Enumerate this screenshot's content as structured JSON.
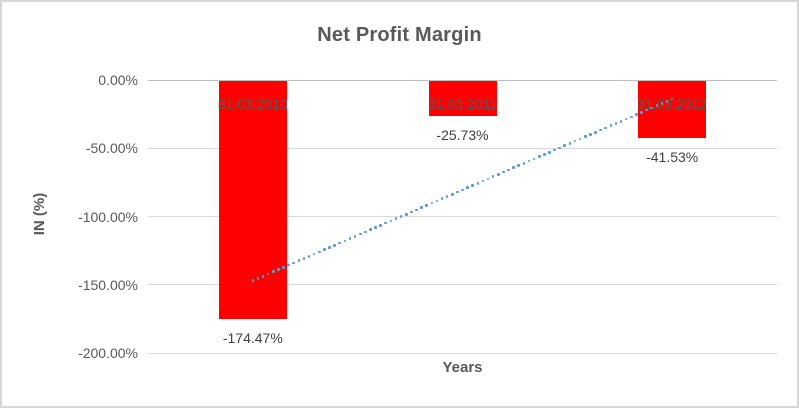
{
  "chart_data": {
    "type": "bar",
    "title": "Net Profit Margin",
    "xlabel": "Years",
    "ylabel": "IN (%)",
    "categories": [
      "31.03.2010",
      "31.03.2011",
      "31.03.2012"
    ],
    "values": [
      -174.47,
      -25.73,
      -41.53
    ],
    "data_labels": [
      "-174.47%",
      "-25.73%",
      "-41.53%"
    ],
    "ylim": [
      -200,
      0
    ],
    "y_ticks": [
      0,
      -50,
      -100,
      -150,
      -200
    ],
    "y_tick_labels": [
      "0.00%",
      "-50.00%",
      "-100.00%",
      "-150.00%",
      "-200.00%"
    ],
    "grid": true,
    "legend": "none",
    "bar_color": "#ff0000",
    "text_color": "#595959",
    "data_label_color": "#404040",
    "gridline_color": "#d9d9d9",
    "trendline": {
      "type": "linear",
      "style": "dotted",
      "color": "#5b9bd5",
      "start": {
        "category_index": 0,
        "value": -147
      },
      "end": {
        "category_index": 2,
        "value": -14
      }
    }
  }
}
